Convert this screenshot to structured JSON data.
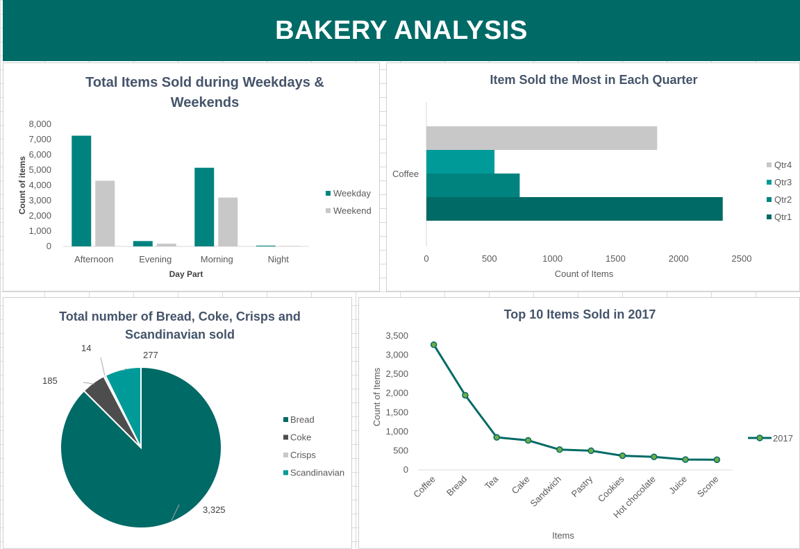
{
  "dashboard_title": "BAKERY ANALYSIS",
  "colors": {
    "banner": "#006a66",
    "teal_dark": "#006a66",
    "teal": "#00837f",
    "teal_light": "#009b98",
    "gray": "#c8c8c8",
    "dark_gray": "#4d4d4d"
  },
  "chart_data": [
    {
      "type": "bar",
      "title_lines": [
        "Total Items Sold during Weekdays &",
        "Weekends"
      ],
      "xlabel": "Day Part",
      "ylabel": "Count of items",
      "categories": [
        "Afternoon",
        "Evening",
        "Morning",
        "Night"
      ],
      "series": [
        {
          "name": "Weekday",
          "values": [
            7250,
            350,
            5150,
            50
          ],
          "color": "#00837f"
        },
        {
          "name": "Weekend",
          "values": [
            4300,
            180,
            3200,
            30
          ],
          "color": "#c8c8c8"
        }
      ],
      "ylim": [
        0,
        8000
      ],
      "yticks": [
        "0",
        "1,000",
        "2,000",
        "3,000",
        "4,000",
        "5,000",
        "6,000",
        "7,000",
        "8,000"
      ],
      "legend_position": "right"
    },
    {
      "type": "bar",
      "orientation": "horizontal",
      "title": "Item Sold the Most in Each Quarter",
      "xlabel": "Count of Items",
      "category": "Coffee",
      "series": [
        {
          "name": "Qtr4",
          "value": 1830,
          "color": "#c8c8c8"
        },
        {
          "name": "Qtr3",
          "value": 540,
          "color": "#009b98"
        },
        {
          "name": "Qtr2",
          "value": 740,
          "color": "#00837f"
        },
        {
          "name": "Qtr1",
          "value": 2350,
          "color": "#006a66"
        }
      ],
      "xlim": [
        0,
        2500
      ],
      "xticks": [
        "0",
        "500",
        "1000",
        "1500",
        "2000",
        "2500"
      ],
      "legend_position": "right"
    },
    {
      "type": "pie",
      "title_lines": [
        "Total number of Bread, Coke, Crisps and",
        "Scandinavian sold"
      ],
      "slices": [
        {
          "name": "Bread",
          "value": 3325,
          "label": "3,325",
          "color": "#006a66"
        },
        {
          "name": "Coke",
          "value": 185,
          "label": "185",
          "color": "#4d4d4d"
        },
        {
          "name": "Crisps",
          "value": 14,
          "label": "14",
          "color": "#c8c8c8"
        },
        {
          "name": "Scandinavian",
          "value": 277,
          "label": "277",
          "color": "#009b98"
        }
      ],
      "legend_position": "right"
    },
    {
      "type": "line",
      "title": "Top 10 Items Sold in 2017",
      "xlabel": "Items",
      "ylabel": "Count of Items",
      "categories": [
        "Coffee",
        "Bread",
        "Tea",
        "Cake",
        "Sandwich",
        "Pastry",
        "Cookies",
        "Hot chocolate",
        "Juice",
        "Scone"
      ],
      "series": [
        {
          "name": "2017",
          "values": [
            3270,
            1950,
            850,
            770,
            530,
            500,
            370,
            340,
            270,
            265
          ],
          "color": "#006a66",
          "marker_color": "#70ad47"
        }
      ],
      "ylim": [
        0,
        3500
      ],
      "yticks": [
        "0",
        "500",
        "1,000",
        "1,500",
        "2,000",
        "2,500",
        "3,000",
        "3,500"
      ],
      "legend_position": "right"
    }
  ]
}
